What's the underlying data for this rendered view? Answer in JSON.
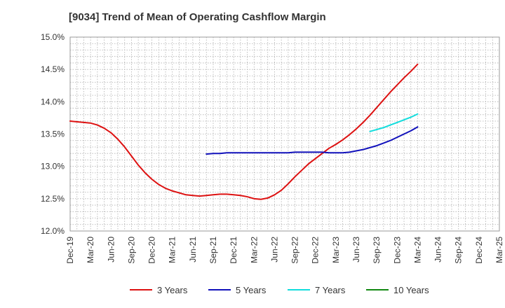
{
  "chart_data": {
    "type": "line",
    "title": "[9034]  Trend of Mean of Operating Cashflow Margin",
    "xlabel": "",
    "ylabel": "",
    "x_ticks": [
      "Dec-19",
      "Mar-20",
      "Jun-20",
      "Sep-20",
      "Dec-20",
      "Mar-21",
      "Jun-21",
      "Sep-21",
      "Dec-21",
      "Mar-22",
      "Jun-22",
      "Sep-22",
      "Dec-22",
      "Mar-23",
      "Jun-23",
      "Sep-23",
      "Dec-23",
      "Mar-24",
      "Jun-24",
      "Sep-24",
      "Dec-24",
      "Mar-25"
    ],
    "y_ticks": [
      "12.0%",
      "12.5%",
      "13.0%",
      "13.5%",
      "14.0%",
      "14.5%",
      "15.0%"
    ],
    "ylim": [
      12.0,
      15.0
    ],
    "grid": true,
    "legend_position": "bottom",
    "series": [
      {
        "name": "3 Years",
        "color": "#dd1111",
        "x": [
          "Dec-19",
          "Jan-20",
          "Feb-20",
          "Mar-20",
          "Apr-20",
          "May-20",
          "Jun-20",
          "Jul-20",
          "Aug-20",
          "Sep-20",
          "Oct-20",
          "Nov-20",
          "Dec-20",
          "Jan-21",
          "Feb-21",
          "Mar-21",
          "Apr-21",
          "May-21",
          "Jun-21",
          "Jul-21",
          "Aug-21",
          "Sep-21",
          "Oct-21",
          "Nov-21",
          "Dec-21",
          "Jan-22",
          "Feb-22",
          "Mar-22",
          "Apr-22",
          "May-22",
          "Jun-22",
          "Jul-22",
          "Aug-22",
          "Sep-22",
          "Oct-22",
          "Nov-22",
          "Dec-22",
          "Jan-23",
          "Feb-23",
          "Mar-23",
          "Apr-23",
          "May-23",
          "Jun-23",
          "Jul-23",
          "Aug-23",
          "Sep-23",
          "Oct-23",
          "Nov-23",
          "Dec-23",
          "Jan-24",
          "Feb-24",
          "Mar-24"
        ],
        "values": [
          13.7,
          13.69,
          13.68,
          13.67,
          13.64,
          13.59,
          13.52,
          13.42,
          13.3,
          13.16,
          13.02,
          12.9,
          12.8,
          12.72,
          12.66,
          12.62,
          12.59,
          12.56,
          12.55,
          12.54,
          12.55,
          12.56,
          12.57,
          12.57,
          12.56,
          12.55,
          12.53,
          12.5,
          12.49,
          12.51,
          12.56,
          12.63,
          12.73,
          12.84,
          12.94,
          13.04,
          13.12,
          13.2,
          13.28,
          13.34,
          13.41,
          13.49,
          13.58,
          13.68,
          13.79,
          13.91,
          14.03,
          14.15,
          14.26,
          14.37,
          14.47,
          14.58
        ]
      },
      {
        "name": "5 Years",
        "color": "#1111bb",
        "x": [
          "Aug-21",
          "Sep-21",
          "Oct-21",
          "Nov-21",
          "Dec-21",
          "Jan-22",
          "Feb-22",
          "Mar-22",
          "Apr-22",
          "May-22",
          "Jun-22",
          "Jul-22",
          "Aug-22",
          "Sep-22",
          "Oct-22",
          "Nov-22",
          "Dec-22",
          "Jan-23",
          "Feb-23",
          "Mar-23",
          "Apr-23",
          "May-23",
          "Jun-23",
          "Jul-23",
          "Aug-23",
          "Sep-23",
          "Oct-23",
          "Nov-23",
          "Dec-23",
          "Jan-24",
          "Feb-24",
          "Mar-24"
        ],
        "values": [
          13.19,
          13.2,
          13.2,
          13.21,
          13.21,
          13.21,
          13.21,
          13.21,
          13.21,
          13.21,
          13.21,
          13.21,
          13.21,
          13.22,
          13.22,
          13.22,
          13.22,
          13.22,
          13.21,
          13.21,
          13.21,
          13.22,
          13.24,
          13.26,
          13.29,
          13.32,
          13.36,
          13.4,
          13.45,
          13.5,
          13.55,
          13.61
        ]
      },
      {
        "name": "7 Years",
        "color": "#11dddd",
        "x": [
          "Aug-23",
          "Sep-23",
          "Oct-23",
          "Nov-23",
          "Dec-23",
          "Jan-24",
          "Feb-24",
          "Mar-24"
        ],
        "values": [
          13.54,
          13.57,
          13.6,
          13.64,
          13.68,
          13.72,
          13.76,
          13.81
        ]
      },
      {
        "name": "10 Years",
        "color": "#118811",
        "x": [],
        "values": []
      }
    ]
  }
}
